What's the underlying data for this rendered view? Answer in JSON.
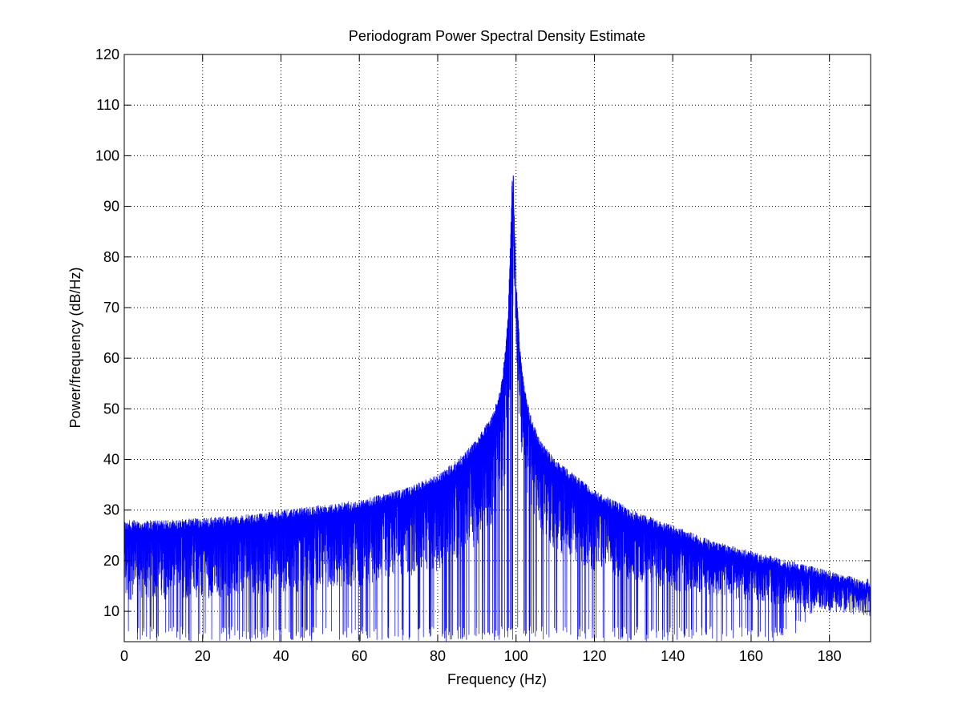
{
  "chart_data": {
    "type": "line",
    "title": "Periodogram Power Spectral Density Estimate",
    "xlabel": "Frequency (Hz)",
    "ylabel": "Power/frequency (dB/Hz)",
    "xlim": [
      0,
      190.5
    ],
    "ylim": [
      4,
      120
    ],
    "x_ticks": [
      0,
      20,
      40,
      60,
      80,
      100,
      120,
      140,
      160,
      180
    ],
    "y_ticks": [
      10,
      20,
      30,
      40,
      50,
      60,
      70,
      80,
      90,
      100,
      110,
      120
    ],
    "grid": true,
    "grid_style": "dotted",
    "line_color": "#0000ff",
    "series": [
      {
        "envelope_upper": {
          "x": [
            0,
            10,
            20,
            30,
            40,
            50,
            60,
            70,
            80,
            85,
            90,
            94,
            96,
            97,
            98,
            98.5,
            99,
            99.5,
            100,
            101,
            102,
            104,
            106,
            110,
            115,
            120,
            130,
            140,
            150,
            160,
            170,
            180,
            185,
            190.5
          ],
          "y": [
            28,
            28,
            28.5,
            29,
            30,
            31,
            32,
            34,
            37,
            40,
            44,
            49,
            54,
            60,
            70,
            82,
            96,
            90,
            76,
            62,
            55,
            48,
            44,
            40,
            37,
            34,
            30,
            27,
            24,
            22,
            20,
            18,
            17,
            15.5
          ]
        },
        "envelope_mid": {
          "x": [
            0,
            20,
            40,
            60,
            80,
            90,
            95,
            97,
            98,
            99,
            100,
            101,
            103,
            106,
            110,
            120,
            140,
            160,
            180,
            190.5
          ],
          "y": [
            18,
            18.5,
            19.5,
            21,
            24,
            29,
            34,
            40,
            50,
            70,
            68,
            50,
            38,
            32,
            28,
            24,
            20,
            18,
            16,
            15
          ]
        },
        "envelope_lower": {
          "x": [
            0,
            170,
            175,
            180,
            185,
            190.5
          ],
          "y": [
            4,
            4,
            9,
            12,
            13.5,
            14.5
          ]
        },
        "peak": {
          "x": 99.3,
          "y": 96
        }
      }
    ]
  }
}
